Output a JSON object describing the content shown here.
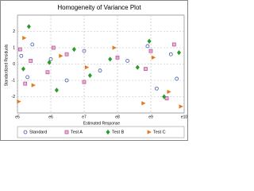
{
  "chart_data": {
    "type": "scatter",
    "title": "Homogeneity of Variance Plot",
    "x_label": "Estimated Response",
    "y_label": "Standardized Residuals",
    "xscale": "log",
    "grid": true,
    "xlim": [
      100000,
      10000000000
    ],
    "xticks": [
      {
        "value": 100000,
        "label": "e5"
      },
      {
        "value": 1000000,
        "label": "e6"
      },
      {
        "value": 10000000,
        "label": "e7"
      },
      {
        "value": 100000000,
        "label": "e8"
      },
      {
        "value": 1000000000,
        "label": "e9"
      },
      {
        "value": 10000000000,
        "label": "e10"
      }
    ],
    "ylim": [
      -3,
      3
    ],
    "yticks": [
      -2,
      -1,
      0,
      1,
      2
    ],
    "series": [
      {
        "name": "Standard",
        "color": "#3f58a8",
        "marker": "circle",
        "x": [
          130000,
          200000,
          280000,
          1000000,
          3000000,
          10000000,
          30000000,
          200000000,
          800000000,
          1500000000,
          4000000000,
          6000000000
        ],
        "values": [
          0.5,
          -0.8,
          1.2,
          0.3,
          -1.0,
          0.8,
          -0.4,
          0.2,
          1.1,
          -1.5,
          0.6,
          -0.9
        ]
      },
      {
        "name": "Test A",
        "color": "#c0509a",
        "marker": "square",
        "x": [
          120000,
          170000,
          250000,
          800000,
          1200000,
          3000000,
          10000000,
          100000000,
          700000000,
          1000000000,
          3000000000,
          5000000000
        ],
        "values": [
          0.9,
          -1.2,
          0.2,
          -0.5,
          1.0,
          0.6,
          -1.1,
          0.4,
          -0.3,
          0.8,
          -2.1,
          1.2
        ]
      },
      {
        "name": "Test B",
        "color": "#2a9a2a",
        "marker": "diamond",
        "x": [
          150000,
          220000,
          900000,
          1500000,
          5000000,
          15000000,
          60000000,
          400000000,
          900000000,
          2500000000,
          7000000000
        ],
        "values": [
          -0.3,
          2.3,
          0.1,
          -1.6,
          0.9,
          -0.7,
          0.3,
          -0.2,
          1.4,
          -2.0,
          0.7
        ]
      },
      {
        "name": "Test C",
        "color": "#e07a1e",
        "marker": "triangle",
        "x": [
          110000,
          160000,
          300000,
          2000000,
          12000000,
          80000000,
          600000000,
          1200000000,
          3500000000,
          8000000000
        ],
        "values": [
          -2.3,
          1.6,
          -1.3,
          0.5,
          -0.2,
          1.0,
          -2.4,
          0.4,
          -1.7,
          -2.6
        ]
      }
    ]
  }
}
